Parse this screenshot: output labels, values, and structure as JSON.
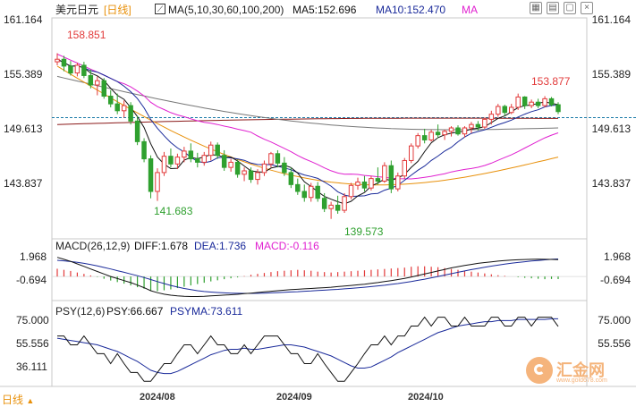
{
  "header": {
    "symbol": "美元日元",
    "period": "[日线]",
    "ma_label": "MA(5,10,30,60,100,200)",
    "ma5": "MA5:152.696",
    "ma10": "MA10:152.470",
    "ma_more": "MA"
  },
  "price_axis": [
    "161.164",
    "155.389",
    "149.613",
    "143.837"
  ],
  "annotations": {
    "high1": "158.851",
    "low1": "141.683",
    "low2": "139.573",
    "high2": "153.877"
  },
  "macd": {
    "label": "MACD(26,12,9)",
    "diff": "DIFF:1.678",
    "dea": "DEA:1.736",
    "macd": "MACD:-0.116",
    "axis": [
      "1.968",
      "-0.694"
    ]
  },
  "psy": {
    "label": "PSY(12,6)",
    "psy": "PSY:66.667",
    "psyma": "PSYMA:73.611",
    "axis": [
      "75.000",
      "55.556",
      "36.111"
    ]
  },
  "date_axis": [
    "2024/08",
    "2024/09",
    "2024/10"
  ],
  "footer": {
    "period_tab": "日线"
  },
  "watermark": {
    "text": "汇金网",
    "sub": "www.gold678.com"
  },
  "colors": {
    "up": "#e23a3a",
    "down": "#2fa02f",
    "ma5": "#111111",
    "ma10": "#1a2a9a",
    "ma30": "#e020d0",
    "ma60": "#e8900a",
    "ma100": "#777777",
    "ma200": "#8b1a1a",
    "psyma": "#1a2a9a"
  },
  "chart_data": {
    "type": "candlestick",
    "ylim": [
      137.8,
      162.6
    ],
    "reference_price": 151.4,
    "candles": [
      [
        157.9,
        158.9,
        157.5,
        158.2
      ],
      [
        158.2,
        158.6,
        156.8,
        157.4
      ],
      [
        157.4,
        158.0,
        156.3,
        156.6
      ],
      [
        156.6,
        157.8,
        156.2,
        157.5
      ],
      [
        157.5,
        157.9,
        156.0,
        156.3
      ],
      [
        156.3,
        157.0,
        154.8,
        155.2
      ],
      [
        155.2,
        156.2,
        154.0,
        155.7
      ],
      [
        155.7,
        156.0,
        153.6,
        153.9
      ],
      [
        153.9,
        154.6,
        152.6,
        153.0
      ],
      [
        153.0,
        154.2,
        151.8,
        152.2
      ],
      [
        152.2,
        153.4,
        151.4,
        152.8
      ],
      [
        152.8,
        153.2,
        150.6,
        151.0
      ],
      [
        151.0,
        151.6,
        148.2,
        148.6
      ],
      [
        148.6,
        149.0,
        146.2,
        146.6
      ],
      [
        146.6,
        147.0,
        142.0,
        142.8
      ],
      [
        142.8,
        145.5,
        141.7,
        145.0
      ],
      [
        145.0,
        147.4,
        144.6,
        146.9
      ],
      [
        146.9,
        147.8,
        145.6,
        146.0
      ],
      [
        146.0,
        147.2,
        145.4,
        146.8
      ],
      [
        146.8,
        148.0,
        146.2,
        147.5
      ],
      [
        147.5,
        148.4,
        146.2,
        146.6
      ],
      [
        146.6,
        147.3,
        145.6,
        146.2
      ],
      [
        146.2,
        147.4,
        145.8,
        147.0
      ],
      [
        147.0,
        148.6,
        146.4,
        148.2
      ],
      [
        148.2,
        148.5,
        146.6,
        147.0
      ],
      [
        147.0,
        147.6,
        145.2,
        145.6
      ],
      [
        145.6,
        146.6,
        145.1,
        146.2
      ],
      [
        146.2,
        146.5,
        144.4,
        144.8
      ],
      [
        144.8,
        145.6,
        144.0,
        145.2
      ],
      [
        145.2,
        145.6,
        143.8,
        144.2
      ],
      [
        144.2,
        145.4,
        143.6,
        145.0
      ],
      [
        145.0,
        146.4,
        144.6,
        146.0
      ],
      [
        146.0,
        147.4,
        145.6,
        147.2
      ],
      [
        147.2,
        147.6,
        145.6,
        146.1
      ],
      [
        146.1,
        146.8,
        144.6,
        145.0
      ],
      [
        145.0,
        145.6,
        143.2,
        143.6
      ],
      [
        143.6,
        144.3,
        142.4,
        142.8
      ],
      [
        142.8,
        143.6,
        141.6,
        142.1
      ],
      [
        142.1,
        143.8,
        141.6,
        143.4
      ],
      [
        143.4,
        143.9,
        141.6,
        142.0
      ],
      [
        142.0,
        142.6,
        140.4,
        140.8
      ],
      [
        140.8,
        141.6,
        139.6,
        141.2
      ],
      [
        141.2,
        142.3,
        140.2,
        140.6
      ],
      [
        140.6,
        142.6,
        140.3,
        142.2
      ],
      [
        142.2,
        143.8,
        141.9,
        143.5
      ],
      [
        143.5,
        144.4,
        143.0,
        143.9
      ],
      [
        143.9,
        144.6,
        142.8,
        143.2
      ],
      [
        143.2,
        144.6,
        142.9,
        144.3
      ],
      [
        144.3,
        145.6,
        143.6,
        144.0
      ],
      [
        144.0,
        146.2,
        143.8,
        145.8
      ],
      [
        145.8,
        146.4,
        142.6,
        143.1
      ],
      [
        143.1,
        145.0,
        142.8,
        144.6
      ],
      [
        144.6,
        146.7,
        144.3,
        146.4
      ],
      [
        146.4,
        148.4,
        146.1,
        148.1
      ],
      [
        148.1,
        149.6,
        147.8,
        149.3
      ],
      [
        149.3,
        150.1,
        148.4,
        148.8
      ],
      [
        148.8,
        150.0,
        148.6,
        149.7
      ],
      [
        149.7,
        150.6,
        149.0,
        149.4
      ],
      [
        149.4,
        150.0,
        148.8,
        149.8
      ],
      [
        149.8,
        150.4,
        149.2,
        150.2
      ],
      [
        150.2,
        150.5,
        149.3,
        149.5
      ],
      [
        149.5,
        150.4,
        149.1,
        150.2
      ],
      [
        150.2,
        150.9,
        149.6,
        150.6
      ],
      [
        150.6,
        151.0,
        149.9,
        150.3
      ],
      [
        150.3,
        151.4,
        150.1,
        151.2
      ],
      [
        151.2,
        152.2,
        150.6,
        151.8
      ],
      [
        151.8,
        153.0,
        151.5,
        152.7
      ],
      [
        152.7,
        152.9,
        151.6,
        152.0
      ],
      [
        152.0,
        153.0,
        151.8,
        152.6
      ],
      [
        152.6,
        154.2,
        152.3,
        153.8
      ],
      [
        153.8,
        153.9,
        152.4,
        152.8
      ],
      [
        152.8,
        153.5,
        152.5,
        153.2
      ],
      [
        153.2,
        153.6,
        152.5,
        152.8
      ],
      [
        152.8,
        153.9,
        152.6,
        153.6
      ],
      [
        153.6,
        153.8,
        152.7,
        152.9
      ],
      [
        152.9,
        153.2,
        151.8,
        152.1
      ]
    ],
    "macd_histogram": [
      0.35,
      0.3,
      0.25,
      0.18,
      0.12,
      0.05,
      -0.02,
      -0.1,
      -0.18,
      -0.25,
      -0.32,
      -0.4,
      -0.48,
      -0.55,
      -0.62,
      -0.66,
      -0.62,
      -0.58,
      -0.52,
      -0.46,
      -0.4,
      -0.34,
      -0.28,
      -0.22,
      -0.17,
      -0.12,
      -0.08,
      -0.04,
      0.02,
      0.08,
      0.12,
      0.16,
      0.2,
      0.24,
      0.26,
      0.28,
      0.3,
      0.28,
      0.26,
      0.22,
      0.2,
      0.18,
      0.2,
      0.22,
      0.24,
      0.26,
      0.28,
      0.3,
      0.32,
      0.34,
      0.36,
      0.38,
      0.4,
      0.44,
      0.46,
      0.46,
      0.44,
      0.42,
      0.38,
      0.34,
      0.3,
      0.26,
      0.22,
      0.18,
      0.14,
      0.1,
      0.06,
      0.03,
      0.0,
      -0.03,
      -0.06,
      -0.08,
      -0.1,
      -0.12,
      -0.11,
      -0.116
    ],
    "macd_diff": [
      1.9,
      1.7,
      1.5,
      1.25,
      1.0,
      0.75,
      0.5,
      0.25,
      0.0,
      -0.2,
      -0.4,
      -0.6,
      -0.85,
      -1.1,
      -1.4,
      -1.6,
      -1.75,
      -1.85,
      -1.92,
      -1.96,
      -1.98,
      -1.98,
      -1.96,
      -1.92,
      -1.88,
      -1.84,
      -1.8,
      -1.76,
      -1.7,
      -1.64,
      -1.58,
      -1.52,
      -1.46,
      -1.4,
      -1.35,
      -1.3,
      -1.26,
      -1.22,
      -1.18,
      -1.14,
      -1.1,
      -1.06,
      -1.0,
      -0.94,
      -0.88,
      -0.82,
      -0.76,
      -0.68,
      -0.6,
      -0.5,
      -0.4,
      -0.3,
      -0.18,
      -0.05,
      0.1,
      0.25,
      0.4,
      0.55,
      0.7,
      0.85,
      0.98,
      1.1,
      1.2,
      1.3,
      1.38,
      1.45,
      1.52,
      1.58,
      1.62,
      1.66,
      1.68,
      1.7,
      1.71,
      1.7,
      1.69,
      1.678
    ],
    "macd_dea": [
      1.6,
      1.55,
      1.48,
      1.4,
      1.3,
      1.18,
      1.05,
      0.9,
      0.75,
      0.58,
      0.42,
      0.25,
      0.08,
      -0.1,
      -0.3,
      -0.5,
      -0.7,
      -0.88,
      -1.04,
      -1.18,
      -1.3,
      -1.4,
      -1.48,
      -1.54,
      -1.58,
      -1.62,
      -1.64,
      -1.66,
      -1.67,
      -1.67,
      -1.66,
      -1.64,
      -1.62,
      -1.59,
      -1.56,
      -1.53,
      -1.5,
      -1.46,
      -1.43,
      -1.39,
      -1.35,
      -1.31,
      -1.27,
      -1.22,
      -1.17,
      -1.12,
      -1.06,
      -1.0,
      -0.93,
      -0.86,
      -0.78,
      -0.7,
      -0.6,
      -0.5,
      -0.38,
      -0.26,
      -0.13,
      0.0,
      0.14,
      0.28,
      0.42,
      0.55,
      0.68,
      0.8,
      0.92,
      1.03,
      1.13,
      1.22,
      1.31,
      1.39,
      1.46,
      1.53,
      1.59,
      1.65,
      1.7,
      1.736
    ],
    "macd_ylim": [
      -2.2,
      2.4
    ],
    "psy": [
      58,
      58,
      50,
      50,
      58,
      50,
      42,
      42,
      33,
      42,
      33,
      25,
      25,
      17,
      17,
      25,
      33,
      33,
      42,
      50,
      50,
      42,
      50,
      58,
      50,
      50,
      42,
      42,
      50,
      42,
      50,
      58,
      58,
      58,
      50,
      42,
      42,
      33,
      33,
      42,
      33,
      25,
      17,
      17,
      25,
      33,
      42,
      50,
      50,
      58,
      50,
      58,
      58,
      67,
      67,
      75,
      67,
      75,
      75,
      67,
      67,
      75,
      67,
      67,
      67,
      75,
      75,
      67,
      67,
      75,
      75,
      67,
      75,
      75,
      75,
      66.667
    ],
    "psyma": [
      56,
      55,
      54,
      53,
      52,
      51,
      50,
      48,
      46,
      44,
      41,
      38,
      35,
      31,
      27,
      25,
      24,
      24,
      26,
      29,
      32,
      35,
      38,
      41,
      43,
      45,
      46,
      46,
      47,
      46,
      46,
      47,
      48,
      49,
      50,
      50,
      49,
      48,
      46,
      44,
      42,
      40,
      37,
      34,
      31,
      29,
      29,
      30,
      33,
      36,
      39,
      43,
      46,
      49,
      52,
      55,
      58,
      61,
      63,
      65,
      67,
      68,
      69,
      70,
      71,
      71,
      72,
      72,
      72,
      73,
      73,
      73,
      73,
      73,
      73.6,
      73.611
    ],
    "psy_ylim": [
      14,
      82
    ]
  }
}
